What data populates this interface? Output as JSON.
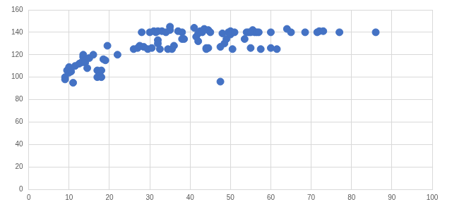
{
  "chart_data": {
    "type": "scatter",
    "x": [
      9,
      9,
      9.5,
      10,
      10,
      10.5,
      11,
      11.5,
      12.5,
      13,
      13.5,
      13.5,
      14,
      14,
      14.5,
      15,
      16,
      17,
      17,
      17.5,
      18,
      18,
      18.5,
      19,
      19.5,
      22,
      26,
      27,
      27.5,
      28,
      28.5,
      29.5,
      30,
      30.5,
      31,
      31.5,
      32,
      32,
      32,
      32.5,
      33,
      34,
      34.5,
      35,
      35,
      35.5,
      36,
      37,
      38,
      38,
      38.5,
      41,
      41.5,
      42,
      42,
      42.5,
      43,
      43.5,
      44,
      44,
      44.5,
      44.5,
      45,
      47.5,
      47.5,
      48,
      48.5,
      49,
      49.5,
      50,
      50,
      50,
      50.5,
      51,
      53.5,
      54,
      54.5,
      55,
      55,
      55.5,
      56,
      56.5,
      57,
      57.5,
      60,
      60,
      61.5,
      64,
      65,
      68.5,
      71.5,
      72,
      73,
      77,
      86
    ],
    "values": [
      98,
      100,
      106,
      109,
      104,
      105,
      95,
      110,
      112,
      113,
      118,
      120,
      115,
      113,
      108,
      117,
      120,
      106,
      100,
      104,
      100,
      106,
      116,
      115,
      128,
      120,
      125,
      126,
      128,
      140,
      127,
      125,
      140,
      126,
      141,
      140,
      141,
      133,
      130,
      125,
      141,
      140,
      125,
      145,
      142,
      125,
      128,
      141,
      140,
      134,
      134,
      144,
      136,
      139,
      132,
      141,
      140,
      143,
      125,
      126,
      126,
      142,
      140,
      96,
      127,
      139,
      130,
      134,
      140,
      141,
      139,
      138,
      125,
      140,
      134,
      140,
      140,
      126,
      140,
      142,
      140,
      140,
      140,
      125,
      140,
      126,
      125,
      143,
      140,
      140,
      140,
      141,
      141,
      140,
      140
    ],
    "color": "#4472c4",
    "marker": "circle",
    "xlim": [
      0,
      100
    ],
    "xticks": [
      0,
      10,
      20,
      30,
      40,
      50,
      60,
      70,
      80,
      90,
      100
    ],
    "ylim": [
      0,
      160
    ],
    "yticks": [
      0,
      20,
      40,
      60,
      80,
      100,
      120,
      140,
      160
    ],
    "grid": true
  }
}
